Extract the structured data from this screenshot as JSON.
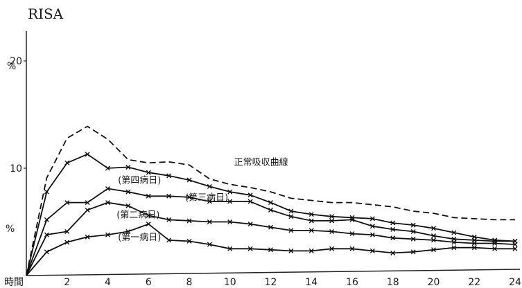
{
  "chart_data": {
    "type": "line",
    "title": "RISA",
    "xlabel": "時間",
    "ylabel_top": "%",
    "ylabel_mid": "%",
    "xlim": [
      0,
      24
    ],
    "ylim": [
      0,
      20
    ],
    "x_ticks": [
      2,
      4,
      6,
      8,
      10,
      12,
      14,
      16,
      18,
      20,
      22,
      24
    ],
    "y_ticks": [
      10,
      20
    ],
    "x": [
      0,
      1,
      2,
      3,
      4,
      5,
      6,
      7,
      8,
      9,
      10,
      11,
      12,
      13,
      14,
      15,
      16,
      17,
      18,
      19,
      20,
      21,
      22,
      23,
      24
    ],
    "series": [
      {
        "name": "正常吸収曲線",
        "style": "dashed",
        "values": [
          0,
          9.1,
          12.8,
          13.9,
          12.7,
          10.8,
          10.5,
          10.6,
          10.3,
          9.0,
          8.5,
          8.2,
          7.8,
          7.2,
          7.0,
          6.8,
          6.8,
          6.6,
          6.4,
          6.0,
          5.8,
          5.4,
          5.3,
          5.2,
          5.2
        ]
      },
      {
        "name": "(第四病日)",
        "style": "solid",
        "values": [
          0,
          7.8,
          10.5,
          11.3,
          10.0,
          10.1,
          9.6,
          9.3,
          8.9,
          8.3,
          7.8,
          7.5,
          6.8,
          6.0,
          5.7,
          5.5,
          5.4,
          5.3,
          4.9,
          4.7,
          4.4,
          4.0,
          3.6,
          3.3,
          3.2
        ]
      },
      {
        "name": "(第三病日)",
        "style": "solid",
        "values": [
          0,
          5.2,
          6.8,
          6.8,
          8.1,
          7.8,
          7.4,
          7.4,
          7.3,
          6.9,
          6.9,
          6.9,
          6.1,
          5.5,
          5.1,
          5.1,
          5.2,
          4.6,
          4.3,
          4.1,
          3.7,
          3.4,
          3.3,
          3.2,
          3.2
        ]
      },
      {
        "name": "(第二病日)",
        "style": "solid",
        "values": [
          0,
          3.8,
          4.1,
          6.1,
          6.8,
          6.5,
          5.6,
          5.2,
          5.1,
          5.0,
          5.0,
          4.8,
          4.5,
          4.2,
          4.2,
          4.1,
          3.9,
          3.8,
          3.5,
          3.4,
          3.3,
          3.1,
          3.0,
          3.0,
          2.9
        ]
      },
      {
        "name": "(第一病日)",
        "style": "solid",
        "values": [
          0,
          2.2,
          3.1,
          3.6,
          3.8,
          4.1,
          4.8,
          3.3,
          3.2,
          2.9,
          2.5,
          2.5,
          2.4,
          2.3,
          2.3,
          2.5,
          2.5,
          2.3,
          2.1,
          2.2,
          2.4,
          2.6,
          2.6,
          2.5,
          2.5
        ]
      }
    ]
  }
}
